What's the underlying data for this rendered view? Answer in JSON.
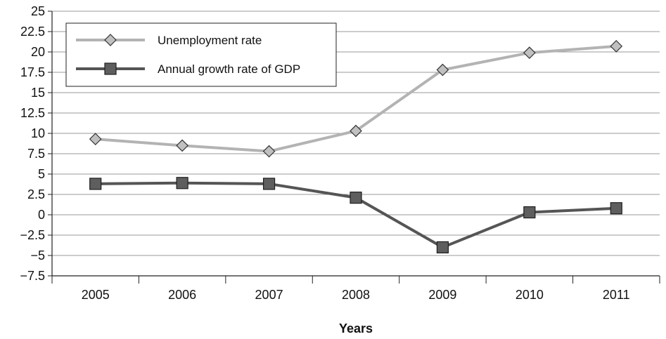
{
  "chart_data": {
    "type": "line",
    "title": "",
    "xlabel": "Years",
    "ylabel": "",
    "categories": [
      "2005",
      "2006",
      "2007",
      "2008",
      "2009",
      "2010",
      "2011"
    ],
    "ylim": [
      -7.5,
      25
    ],
    "yticks": [
      "25",
      "22.5",
      "20",
      "17.5",
      "15",
      "12.5",
      "10",
      "7.5",
      "5",
      "2.5",
      "0",
      "−2.5",
      "−5",
      "−7.5"
    ],
    "grid": true,
    "legend_position": "top-left",
    "series": [
      {
        "name": "Unemployment rate",
        "marker": "diamond",
        "line_color": "#b3b3b3",
        "marker_color": "#c0c0c0",
        "values": [
          9.3,
          8.5,
          7.8,
          10.3,
          17.8,
          19.9,
          20.7
        ]
      },
      {
        "name": "Annual growth rate of GDP",
        "marker": "square",
        "line_color": "#555555",
        "marker_color": "#5e5e5e",
        "values": [
          3.8,
          3.9,
          3.8,
          2.1,
          -4.0,
          0.3,
          0.8
        ]
      }
    ]
  }
}
